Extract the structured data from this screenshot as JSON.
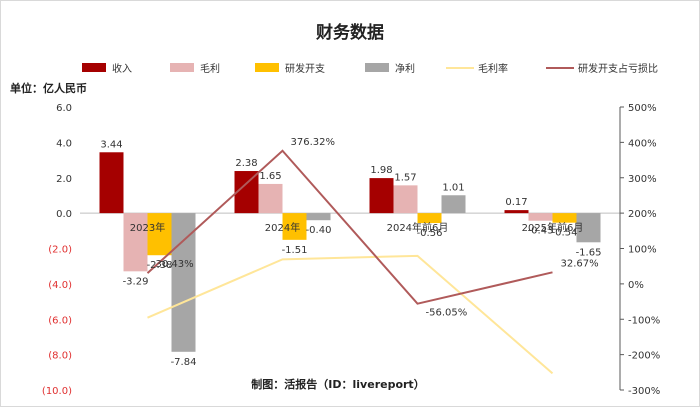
{
  "chart_data": {
    "type": "bar",
    "title": "财务数据",
    "unit_label": "单位：亿人民币",
    "credit": "制图：活报告（ID：livereport）",
    "categories": [
      "2023年",
      "2024年",
      "2024年前6月",
      "2025年前6月"
    ],
    "y_left": {
      "range": [
        -10,
        6
      ],
      "ticks": [
        6,
        4,
        2,
        0,
        -2,
        -4,
        -6,
        -8,
        -10
      ],
      "tick_labels": [
        "6.0",
        "4.0",
        "2.0",
        "0.0",
        "(2.0)",
        "(4.0)",
        "(6.0)",
        "(8.0)",
        "(10.0)"
      ],
      "negative_color": "#e03030"
    },
    "y_right": {
      "range": [
        -300,
        500
      ],
      "ticks": [
        500,
        400,
        300,
        200,
        100,
        0,
        -100,
        -200,
        -300
      ],
      "tick_labels": [
        "500%",
        "400%",
        "300%",
        "200%",
        "100%",
        "0%",
        "-100%",
        "-200%",
        "-300%"
      ]
    },
    "series": [
      {
        "name": "收入",
        "kind": "bar",
        "axis": "left",
        "color": "#a50000",
        "values": [
          3.44,
          2.38,
          1.98,
          0.17
        ],
        "labels": [
          "3.44",
          "2.38",
          "1.98",
          "0.17"
        ]
      },
      {
        "name": "毛利",
        "kind": "bar",
        "axis": "left",
        "color": "#e6b3b3",
        "values": [
          -3.29,
          1.65,
          1.57,
          -0.43
        ],
        "labels": [
          "-3.29",
          "1.65",
          "1.57",
          "-0.43"
        ]
      },
      {
        "name": "研发开支",
        "kind": "bar",
        "axis": "left",
        "color": "#ffc000",
        "values": [
          -2.38,
          -1.51,
          -0.56,
          -0.54
        ],
        "labels": [
          "-2.38",
          "-1.51",
          "-0.56",
          "-0.54"
        ]
      },
      {
        "name": "净利",
        "kind": "bar",
        "axis": "left",
        "color": "#a6a6a6",
        "values": [
          -7.84,
          -0.4,
          1.01,
          -1.65
        ],
        "labels": [
          "-7.84",
          "-0.40",
          "1.01",
          "-1.65"
        ]
      },
      {
        "name": "毛利率",
        "kind": "line",
        "axis": "right",
        "color": "#ffe699",
        "values": [
          -95.6,
          69.3,
          79.3,
          -252.9
        ]
      },
      {
        "name": "研发开支占亏损比",
        "kind": "line",
        "axis": "right",
        "color": "#b05a5a",
        "values": [
          30.43,
          376.32,
          -56.05,
          32.67
        ],
        "labels": [
          "30.43%",
          "376.32%",
          "-56.05%",
          "32.67%"
        ]
      }
    ],
    "legend_position": "top",
    "grid": false
  }
}
